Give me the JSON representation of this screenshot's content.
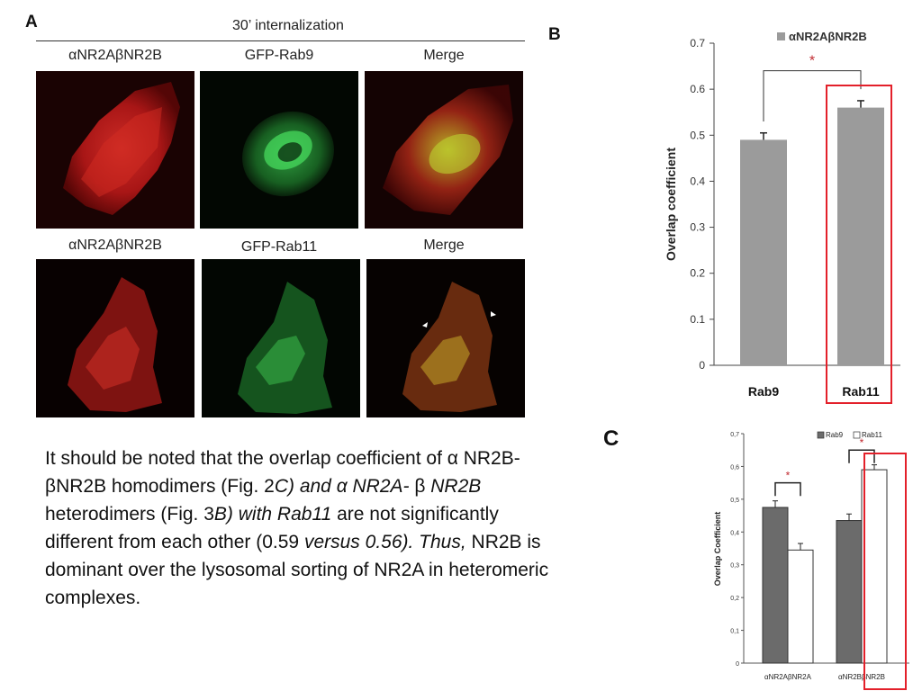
{
  "panel_a": {
    "letter": "A",
    "header": "30’ internalization",
    "row1": [
      "αNR2AβNR2B",
      "GFP-Rab9",
      "Merge"
    ],
    "row2": [
      "αNR2AβNR2B",
      "GFP-Rab11",
      "Merge"
    ]
  },
  "panel_b": {
    "letter": "B"
  },
  "panel_c": {
    "letter": "C"
  },
  "paragraph": {
    "s1": "It should be noted that the overlap coefficient of α NR2B-βNR2B homodimers (Fig. 2",
    "s2": "C) and α NR2A-",
    "s3": " β ",
    "s4": "NR2B",
    "s5": " heterodimers (Fig. 3",
    "s6": "B) with Rab11",
    "s7": " are not significantly different from each other (0.59 ",
    "s8": "versus 0.56). Thus,",
    "s9": " NR2B is dominant over the lysosomal sorting of NR2A in heteromeric complexes."
  },
  "chart_data": [
    {
      "type": "bar",
      "panel": "B",
      "categories": [
        "Rab9",
        "Rab11"
      ],
      "series": [
        {
          "name": "αNR2AβNR2B",
          "values": [
            0.49,
            0.56
          ],
          "errors": [
            0.015,
            0.015
          ]
        }
      ],
      "ylabel": "Overlap coefficient",
      "ylim": [
        0,
        0.7
      ],
      "yticks": [
        "0",
        "0.1",
        "0.2",
        "0.3",
        "0.4",
        "0.5",
        "0.6",
        "0.7"
      ],
      "significance": "*",
      "colors": {
        "bar": "#9b9b9b",
        "highlight": "#e3202a",
        "star": "#c0282e"
      }
    },
    {
      "type": "bar",
      "panel": "C",
      "categories": [
        "αNR2AβNR2A",
        "αNR2BβNR2B"
      ],
      "series": [
        {
          "name": "Rab9",
          "values": [
            0.475,
            0.435
          ],
          "errors": [
            0.02,
            0.02
          ]
        },
        {
          "name": "Rab11",
          "values": [
            0.345,
            0.59
          ],
          "errors": [
            0.02,
            0.015
          ]
        }
      ],
      "ylabel": "Overlap Coefficient",
      "ylim": [
        0,
        0.7
      ],
      "yticks": [
        "0",
        "0,1",
        "0,2",
        "0,3",
        "0,4",
        "0,5",
        "0,6",
        "0,7"
      ],
      "significance": [
        "*",
        "*"
      ],
      "colors": {
        "rab9": "#6b6b6b",
        "rab11": "#ffffff",
        "highlight": "#e3202a",
        "star": "#c0282e"
      }
    }
  ]
}
